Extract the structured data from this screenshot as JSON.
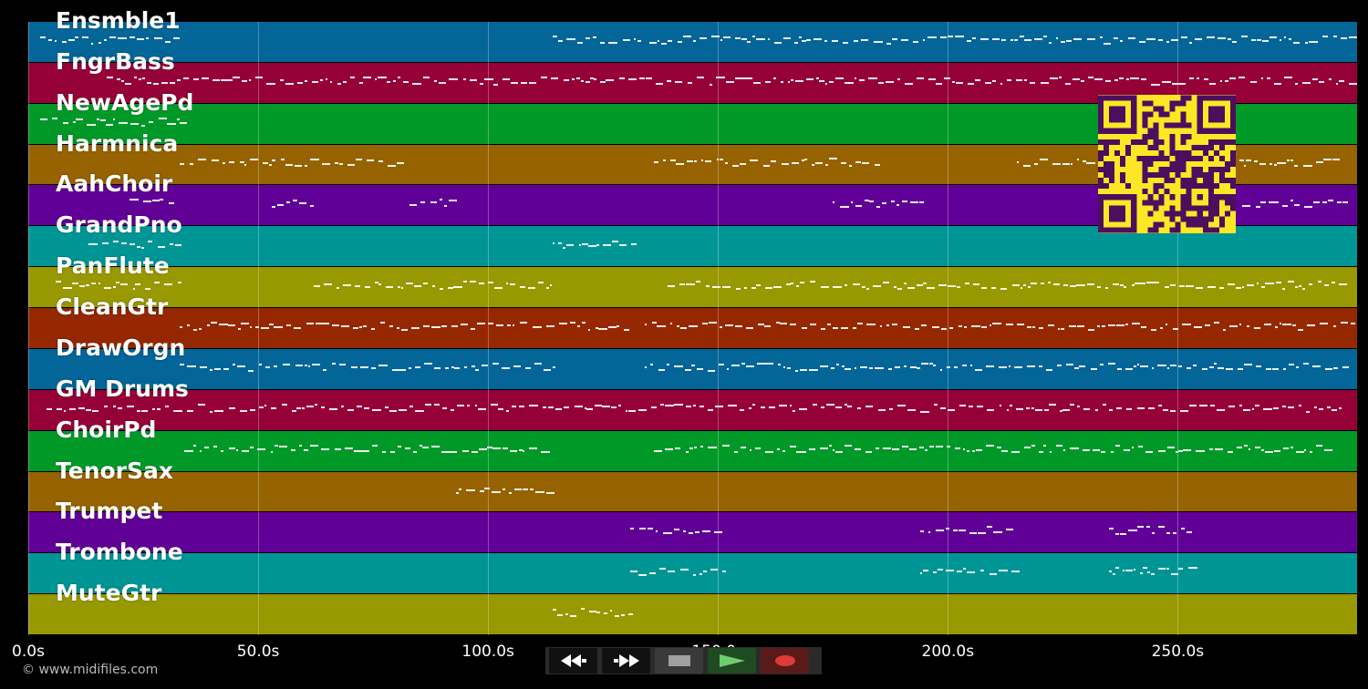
{
  "tracks": [
    {
      "name": "Ensmble1",
      "color": "#046599"
    },
    {
      "name": "FngrBass",
      "color": "#950036"
    },
    {
      "name": "NewAgePd",
      "color": "#009928"
    },
    {
      "name": "Harmnica",
      "color": "#966300"
    },
    {
      "name": "AahChoir",
      "color": "#610096"
    },
    {
      "name": "GrandPno",
      "color": "#009595"
    },
    {
      "name": "PanFlute",
      "color": "#989800"
    },
    {
      "name": "CleanGtr",
      "color": "#952800"
    },
    {
      "name": "DrawOrgn",
      "color": "#046599"
    },
    {
      "name": "GM Drums",
      "color": "#950036"
    },
    {
      "name": "ChoirPd",
      "color": "#009928"
    },
    {
      "name": "TenorSax",
      "color": "#966300"
    },
    {
      "name": "Trumpet",
      "color": "#610096"
    },
    {
      "name": "Trombone",
      "color": "#009595"
    },
    {
      "name": "MuteGtr",
      "color": "#989800"
    }
  ],
  "timeline": {
    "duration_s": 289,
    "ticks": [
      {
        "value": 0,
        "label": "0.0s"
      },
      {
        "value": 50,
        "label": "50.0s"
      },
      {
        "value": 100,
        "label": "100.0s"
      },
      {
        "value": 150,
        "label": "150.0s"
      },
      {
        "value": 200,
        "label": "200.0s"
      },
      {
        "value": 250,
        "label": "250.0s"
      }
    ]
  },
  "note_ranges": [
    [
      [
        2.5,
        33
      ],
      [
        114,
        133
      ],
      [
        135,
        289
      ]
    ],
    [
      [
        17,
        289
      ]
    ],
    [
      [
        2.5,
        33
      ]
    ],
    [
      [
        33,
        81
      ],
      [
        136,
        185
      ],
      [
        215,
        238
      ],
      [
        248,
        286
      ]
    ],
    [
      [
        22,
        32
      ],
      [
        53,
        62
      ],
      [
        83,
        92
      ],
      [
        175,
        194
      ],
      [
        264,
        286
      ]
    ],
    [
      [
        13,
        33
      ],
      [
        114,
        133
      ]
    ],
    [
      [
        6,
        33
      ],
      [
        62,
        114
      ],
      [
        139,
        286
      ]
    ],
    [
      [
        33,
        131
      ],
      [
        134,
        289
      ]
    ],
    [
      [
        33,
        114
      ],
      [
        134,
        286
      ]
    ],
    [
      [
        4,
        33
      ],
      [
        33,
        133
      ],
      [
        134,
        286
      ]
    ],
    [
      [
        34,
        112
      ],
      [
        136,
        282
      ]
    ],
    [
      [
        93,
        114
      ]
    ],
    [
      [
        131,
        151
      ],
      [
        194,
        214
      ],
      [
        235,
        253
      ]
    ],
    [
      [
        131,
        151
      ],
      [
        194,
        214
      ],
      [
        235,
        253
      ]
    ],
    [
      [
        114,
        131
      ]
    ]
  ],
  "credit": "© www.midifiles.com",
  "qr": {
    "fg": "#4b0f5e",
    "bg": "#fde725"
  },
  "transport": {
    "rewind_icon": "rewind-icon",
    "forward_icon": "fast-forward-icon",
    "stop_icon": "stop-icon",
    "play_icon": "play-icon",
    "record_icon": "record-icon"
  }
}
